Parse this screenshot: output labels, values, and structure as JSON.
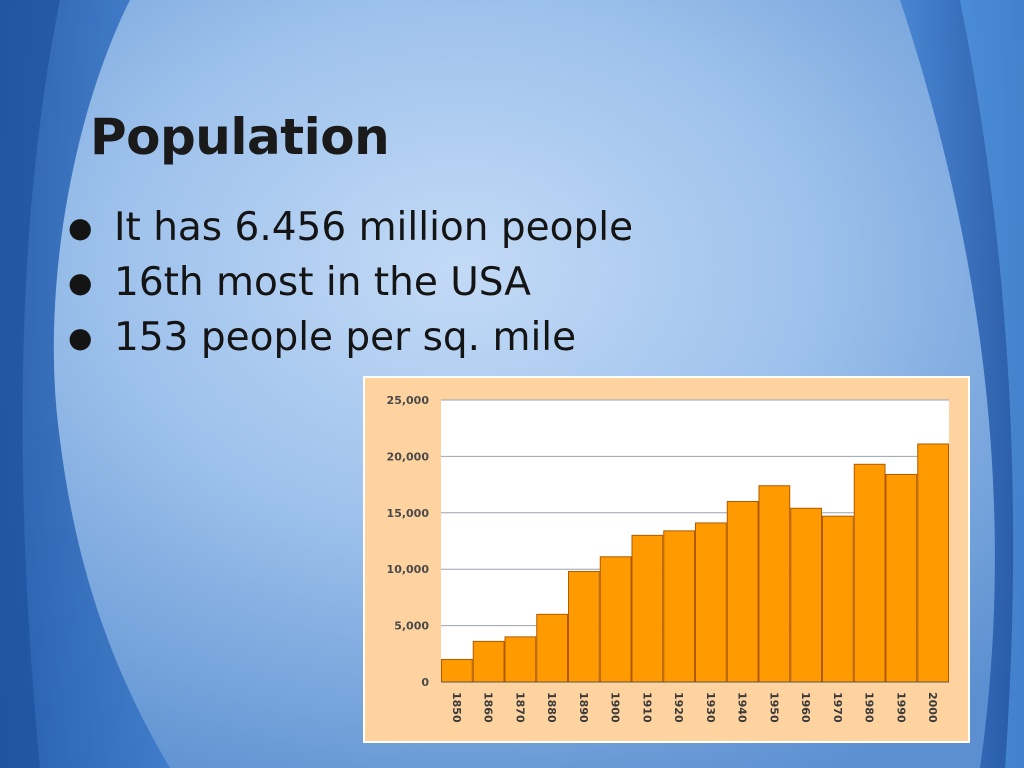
{
  "slide": {
    "title": "Population",
    "bullets": [
      "It has 6.456 million people",
      "16th most in the USA",
      "153 people per sq. mile"
    ]
  },
  "colors": {
    "background": "#5b8fd0",
    "chart_background": "#ffd3a0",
    "bar": "#ff9a00",
    "bar_outline": "#b05a00"
  },
  "chart_data": {
    "type": "bar",
    "categories": [
      "1850",
      "1860",
      "1870",
      "1880",
      "1890",
      "1900",
      "1910",
      "1920",
      "1930",
      "1940",
      "1950",
      "1960",
      "1970",
      "1980",
      "1990",
      "2000"
    ],
    "values": [
      2000,
      3600,
      4000,
      6000,
      9800,
      11100,
      13000,
      13400,
      14100,
      16000,
      17400,
      15400,
      14700,
      19300,
      18400,
      21100
    ],
    "ylim": [
      0,
      25000
    ],
    "yticks": [
      "0",
      "5,000",
      "10,000",
      "15,000",
      "20,000",
      "25,000"
    ],
    "grid": true
  }
}
